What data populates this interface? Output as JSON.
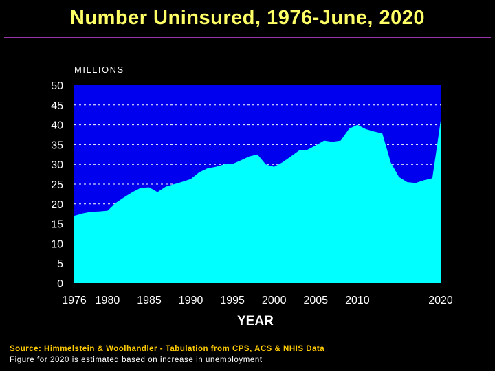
{
  "chart_data": {
    "type": "area",
    "title": "Number Uninsured, 1976-June, 2020",
    "ylabel": "MILLIONS",
    "xlabel": "YEAR",
    "ylim": [
      0,
      50
    ],
    "yticks": [
      0,
      5,
      10,
      15,
      20,
      25,
      30,
      35,
      40,
      45,
      50
    ],
    "xlim": [
      1976,
      2020
    ],
    "xtick_labels": [
      "1976",
      "1980",
      "1985",
      "1990",
      "1995",
      "2000",
      "2005",
      "2010",
      "2020"
    ],
    "grid": "horizontal dashed",
    "colors": {
      "plot_background": "#0000ee",
      "area_fill": "#00ffff",
      "title": "#ffff66",
      "source": "#ffcc00"
    },
    "series": [
      {
        "x": [
          1976,
          1977,
          1978,
          1979,
          1980,
          1981,
          1982,
          1983,
          1984,
          1985,
          1986,
          1987,
          1988,
          1989,
          1990,
          1991,
          1992,
          1993,
          1994,
          1995,
          1996,
          1997,
          1998,
          1999,
          2000,
          2001,
          2002,
          2003,
          2004,
          2005,
          2006,
          2007,
          2008,
          2009,
          2010,
          2011,
          2012,
          2013,
          2014,
          2015,
          2016,
          2017,
          2018,
          2019,
          2020
        ],
        "values": [
          17.0,
          17.6,
          18.0,
          18.1,
          18.3,
          20.3,
          21.7,
          23.0,
          24.1,
          24.2,
          23.0,
          24.4,
          25.0,
          25.6,
          26.3,
          28.0,
          29.0,
          29.4,
          30.0,
          30.1,
          31.0,
          32.0,
          32.5,
          30.0,
          29.4,
          30.5,
          32.0,
          33.5,
          33.7,
          34.8,
          36.0,
          35.7,
          36.0,
          39.0,
          40.0,
          38.9,
          38.3,
          37.8,
          30.5,
          26.8,
          25.5,
          25.3,
          26.0,
          26.5,
          41.0
        ]
      }
    ]
  },
  "source_text": "Source: Himmelstein & Woolhandler - Tabulation from CPS, ACS & NHIS Data",
  "footnote_text": "Figure for 2020 is estimated based on increase in unemployment"
}
